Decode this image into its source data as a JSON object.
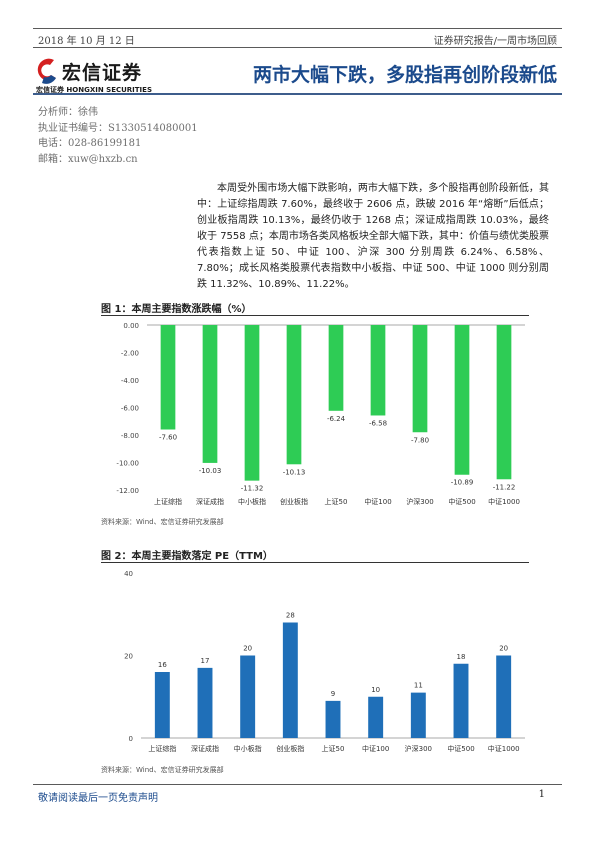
{
  "header": {
    "date": "2018 年 10 月 12 日",
    "report_type": "证券研究报告/一周市场回顾"
  },
  "logo": {
    "name": "宏信证券",
    "sub": "宏信证券 HONGXIN SECURITIES"
  },
  "doc_title": "两市大幅下跌，多股指再创阶段新低",
  "analyst": {
    "name": "分析师：徐伟",
    "license": "执业证书编号：S1330514080001",
    "phone": "电话：028-86199181",
    "email": "邮箱：xuw@hxzb.cn"
  },
  "summary": "本周受外围市场大幅下跌影响，两市大幅下跌，多个股指再创阶段新低，其中：上证综指周跌 7.60%，最终收于 2606 点，跌破 2016 年“熔断”后低点；创业板指周跌 10.13%，最终仍收于 1268 点；深证成指周跌 10.03%，最终收于 7558 点；本周市场各类风格板块全部大幅下跌，其中：价值与绩优类股票代表指数上证 50、中证 100、沪深 300 分别周跌 6.24%、6.58%、7.80%；成长风格类股票代表指数中小板指、中证 500、中证 1000 则分别周跌 11.32%、10.89%、11.22%。",
  "figure1": {
    "title": "图 1：本周主要指数涨跌幅（%）",
    "source": "资料来源：Wind、宏信证券研究发展部"
  },
  "figure2": {
    "title": "图 2：本周主要指数落定 PE（TTM）",
    "source": "资料来源：Wind、宏信证券研究发展部"
  },
  "chart_data": [
    {
      "type": "bar",
      "title": "图 1：本周主要指数涨跌幅（%）",
      "categories": [
        "上证综指",
        "深证成指",
        "中小板指",
        "创业板指",
        "上证50",
        "中证100",
        "沪深300",
        "中证500",
        "中证1000"
      ],
      "values": [
        -7.6,
        -10.03,
        -11.32,
        -10.13,
        -6.24,
        -6.58,
        -7.8,
        -10.89,
        -11.22
      ],
      "data_labels": [
        "-7.60",
        "-10.03",
        "-11.32",
        "-10.13",
        "-6.24",
        "-6.58",
        "-7.80",
        "-10.89",
        "-11.22"
      ],
      "ylim": [
        -12,
        0
      ],
      "yticks": [
        "0.00",
        "-2.00",
        "-4.00",
        "-6.00",
        "-8.00",
        "-10.00",
        "-12.00"
      ],
      "color": "#2ecc55",
      "grid": false
    },
    {
      "type": "bar",
      "title": "图 2：本周主要指数落定 PE（TTM）",
      "categories": [
        "上证综指",
        "深证成指",
        "中小板指",
        "创业板指",
        "上证50",
        "中证100",
        "沪深300",
        "中证500",
        "中证1000"
      ],
      "values": [
        16,
        17,
        20,
        28,
        9,
        10,
        11,
        18,
        20
      ],
      "data_labels": [
        "16",
        "17",
        "20",
        "28",
        "9",
        "10",
        "11",
        "18",
        "20"
      ],
      "ylim": [
        0,
        40
      ],
      "yticks": [
        "40",
        "20",
        "0"
      ],
      "color": "#1f6fb8",
      "grid": false
    }
  ],
  "footer": {
    "disclaimer": "敬请阅读最后一页免责声明",
    "page": "1"
  }
}
